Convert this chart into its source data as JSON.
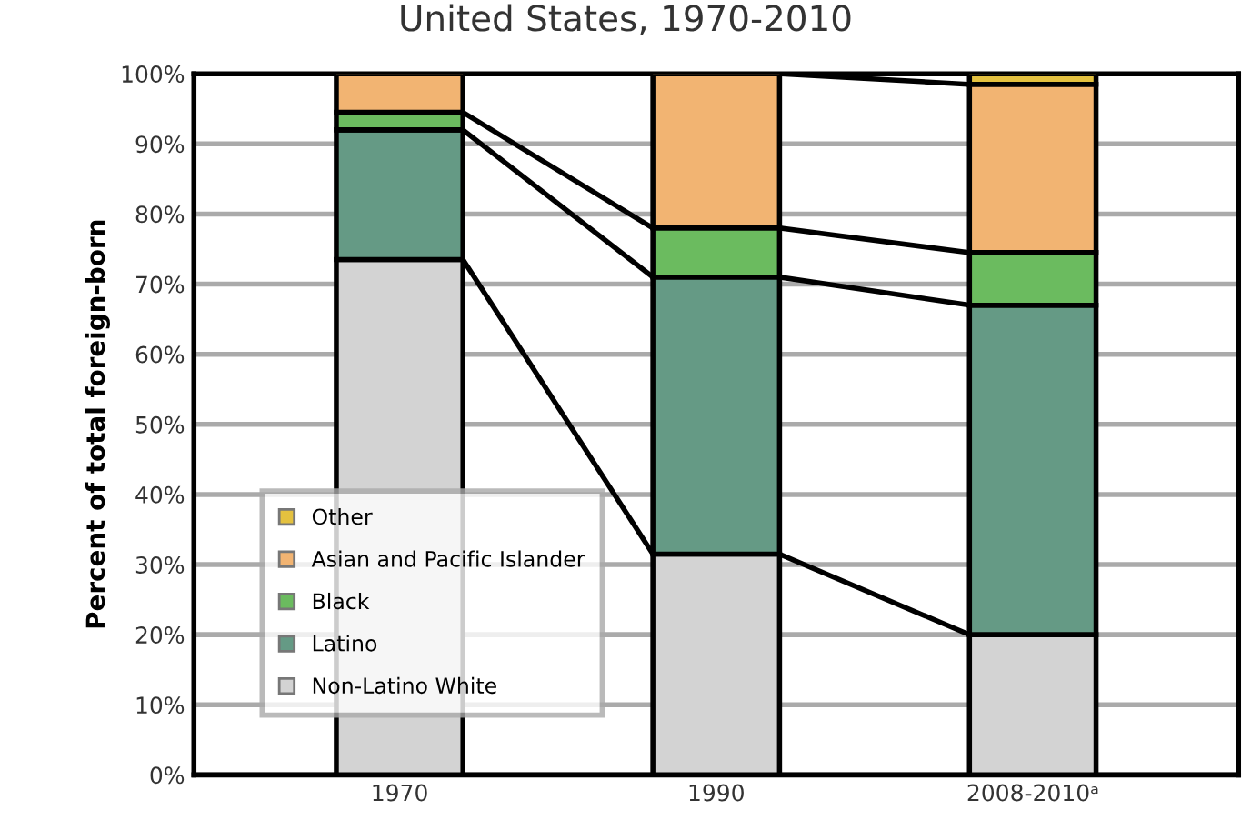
{
  "chart_data": {
    "type": "bar",
    "stacked": true,
    "title": "United States, 1970-2010",
    "ylabel": "Percent of total foreign-born",
    "categories": [
      "1970",
      "1990",
      "2008-2010ᵃ"
    ],
    "series": [
      {
        "name": "Non-Latino White",
        "color": "#d3d3d3",
        "values": [
          73.5,
          31.5,
          20
        ]
      },
      {
        "name": "Latino",
        "color": "#659a85",
        "values": [
          18.5,
          39.5,
          47
        ]
      },
      {
        "name": "Black",
        "color": "#6bbb5f",
        "values": [
          2.5,
          7,
          7.5
        ]
      },
      {
        "name": "Asian and Pacific Islander",
        "color": "#f2b472",
        "values": [
          5.5,
          22,
          24
        ]
      },
      {
        "name": "Other",
        "color": "#e4c13f",
        "values": [
          null,
          null,
          1.5
        ]
      }
    ],
    "ylim": [
      0,
      100
    ],
    "yticks": [
      {
        "value": 0,
        "label": "0%"
      },
      {
        "value": 10,
        "label": "10%"
      },
      {
        "value": 20,
        "label": "20%"
      },
      {
        "value": 30,
        "label": "30%"
      },
      {
        "value": 40,
        "label": "40%"
      },
      {
        "value": 50,
        "label": "50%"
      },
      {
        "value": 60,
        "label": "60%"
      },
      {
        "value": 70,
        "label": "70%"
      },
      {
        "value": 80,
        "label": "80%"
      },
      {
        "value": 90,
        "label": "90%"
      },
      {
        "value": 100,
        "label": "100%"
      }
    ],
    "grid": "y",
    "legend": "bottom left"
  }
}
